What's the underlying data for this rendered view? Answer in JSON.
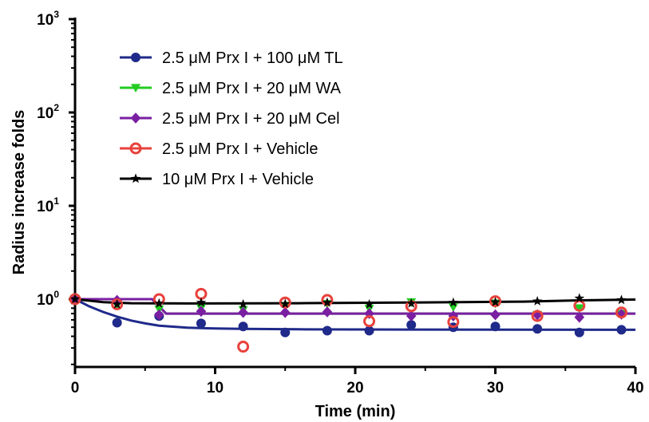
{
  "chart_data": {
    "type": "scatter",
    "title": "",
    "xlabel": "Time (min)",
    "ylabel": "Radius increase folds",
    "xlim": [
      0,
      40
    ],
    "ylim": [
      0.3,
      1000
    ],
    "yscale": "log",
    "x_ticks": [
      0,
      10,
      20,
      30,
      40
    ],
    "y_ticks": [
      {
        "base": "10",
        "exp": "0",
        "value": 1
      },
      {
        "base": "10",
        "exp": "1",
        "value": 10
      },
      {
        "base": "10",
        "exp": "2",
        "value": 100
      },
      {
        "base": "10",
        "exp": "3",
        "value": 1000
      }
    ],
    "grid": false,
    "legend_position": "top-left",
    "series": [
      {
        "name": "2.5 μM Prx I + 100 μM TL",
        "color": "#1f2a8a",
        "marker": "circle-filled",
        "x": [
          0,
          3,
          6,
          9,
          12,
          15,
          18,
          21,
          24,
          27,
          30,
          33,
          36,
          39
        ],
        "y": [
          1.0,
          0.56,
          0.66,
          0.55,
          0.51,
          0.44,
          0.46,
          0.46,
          0.53,
          0.5,
          0.51,
          0.48,
          0.44,
          0.47
        ],
        "fit": [
          [
            0,
            1.0
          ],
          [
            1,
            0.84
          ],
          [
            2,
            0.73
          ],
          [
            3,
            0.65
          ],
          [
            4,
            0.59
          ],
          [
            5,
            0.55
          ],
          [
            6,
            0.52
          ],
          [
            8,
            0.495
          ],
          [
            10,
            0.485
          ],
          [
            12,
            0.48
          ],
          [
            16,
            0.475
          ],
          [
            20,
            0.473
          ],
          [
            40,
            0.47
          ]
        ]
      },
      {
        "name": "2.5 μM Prx I + 20 μM WA",
        "color": "#22cc22",
        "marker": "triangle-down-filled",
        "x": [
          0,
          3,
          6,
          9,
          12,
          15,
          18,
          21,
          24,
          27,
          30,
          33,
          36,
          39
        ],
        "y": [
          1.0,
          0.86,
          0.78,
          0.8,
          0.77,
          0.85,
          0.89,
          0.79,
          0.93,
          0.82,
          0.9,
          0.68,
          0.8,
          0.7
        ],
        "fit": [
          [
            0,
            1.0
          ],
          [
            5.5,
            1.0
          ],
          [
            6.5,
            0.7
          ],
          [
            40,
            0.7
          ]
        ]
      },
      {
        "name": "2.5 μM Prx I + 20 μM Cel",
        "color": "#7a1fa2",
        "marker": "diamond-filled",
        "x": [
          0,
          3,
          6,
          9,
          12,
          15,
          18,
          21,
          24,
          27,
          30,
          33,
          36,
          39
        ],
        "y": [
          1.0,
          0.97,
          0.68,
          0.74,
          0.72,
          0.72,
          0.73,
          0.7,
          0.66,
          0.66,
          0.68,
          0.68,
          0.64,
          0.69
        ],
        "fit": [
          [
            0,
            1.0
          ],
          [
            5.5,
            1.0
          ],
          [
            6.5,
            0.7
          ],
          [
            40,
            0.7
          ]
        ]
      },
      {
        "name": "2.5 μM Prx I + Vehicle",
        "color": "#e8423c",
        "marker": "circle-open",
        "x": [
          0,
          3,
          6,
          9,
          12,
          15,
          18,
          21,
          24,
          27,
          30,
          33,
          36,
          39
        ],
        "y": [
          1.0,
          0.88,
          1.0,
          1.14,
          0.31,
          0.92,
          0.98,
          0.58,
          0.84,
          0.57,
          0.95,
          0.66,
          0.85,
          0.72
        ]
      },
      {
        "name": "10 μM Prx I + Vehicle",
        "color": "#000000",
        "marker": "star",
        "x": [
          0,
          3,
          6,
          9,
          12,
          15,
          18,
          21,
          24,
          27,
          30,
          33,
          36,
          39
        ],
        "y": [
          1.0,
          0.88,
          0.9,
          0.92,
          0.88,
          0.89,
          0.92,
          0.88,
          0.9,
          0.92,
          0.93,
          0.95,
          1.02,
          0.98
        ],
        "fit": [
          [
            0,
            1.0
          ],
          [
            2,
            0.93
          ],
          [
            4,
            0.905
          ],
          [
            8,
            0.9
          ],
          [
            16,
            0.905
          ],
          [
            24,
            0.92
          ],
          [
            32,
            0.94
          ],
          [
            36,
            0.97
          ],
          [
            40,
            0.99
          ]
        ]
      }
    ]
  }
}
